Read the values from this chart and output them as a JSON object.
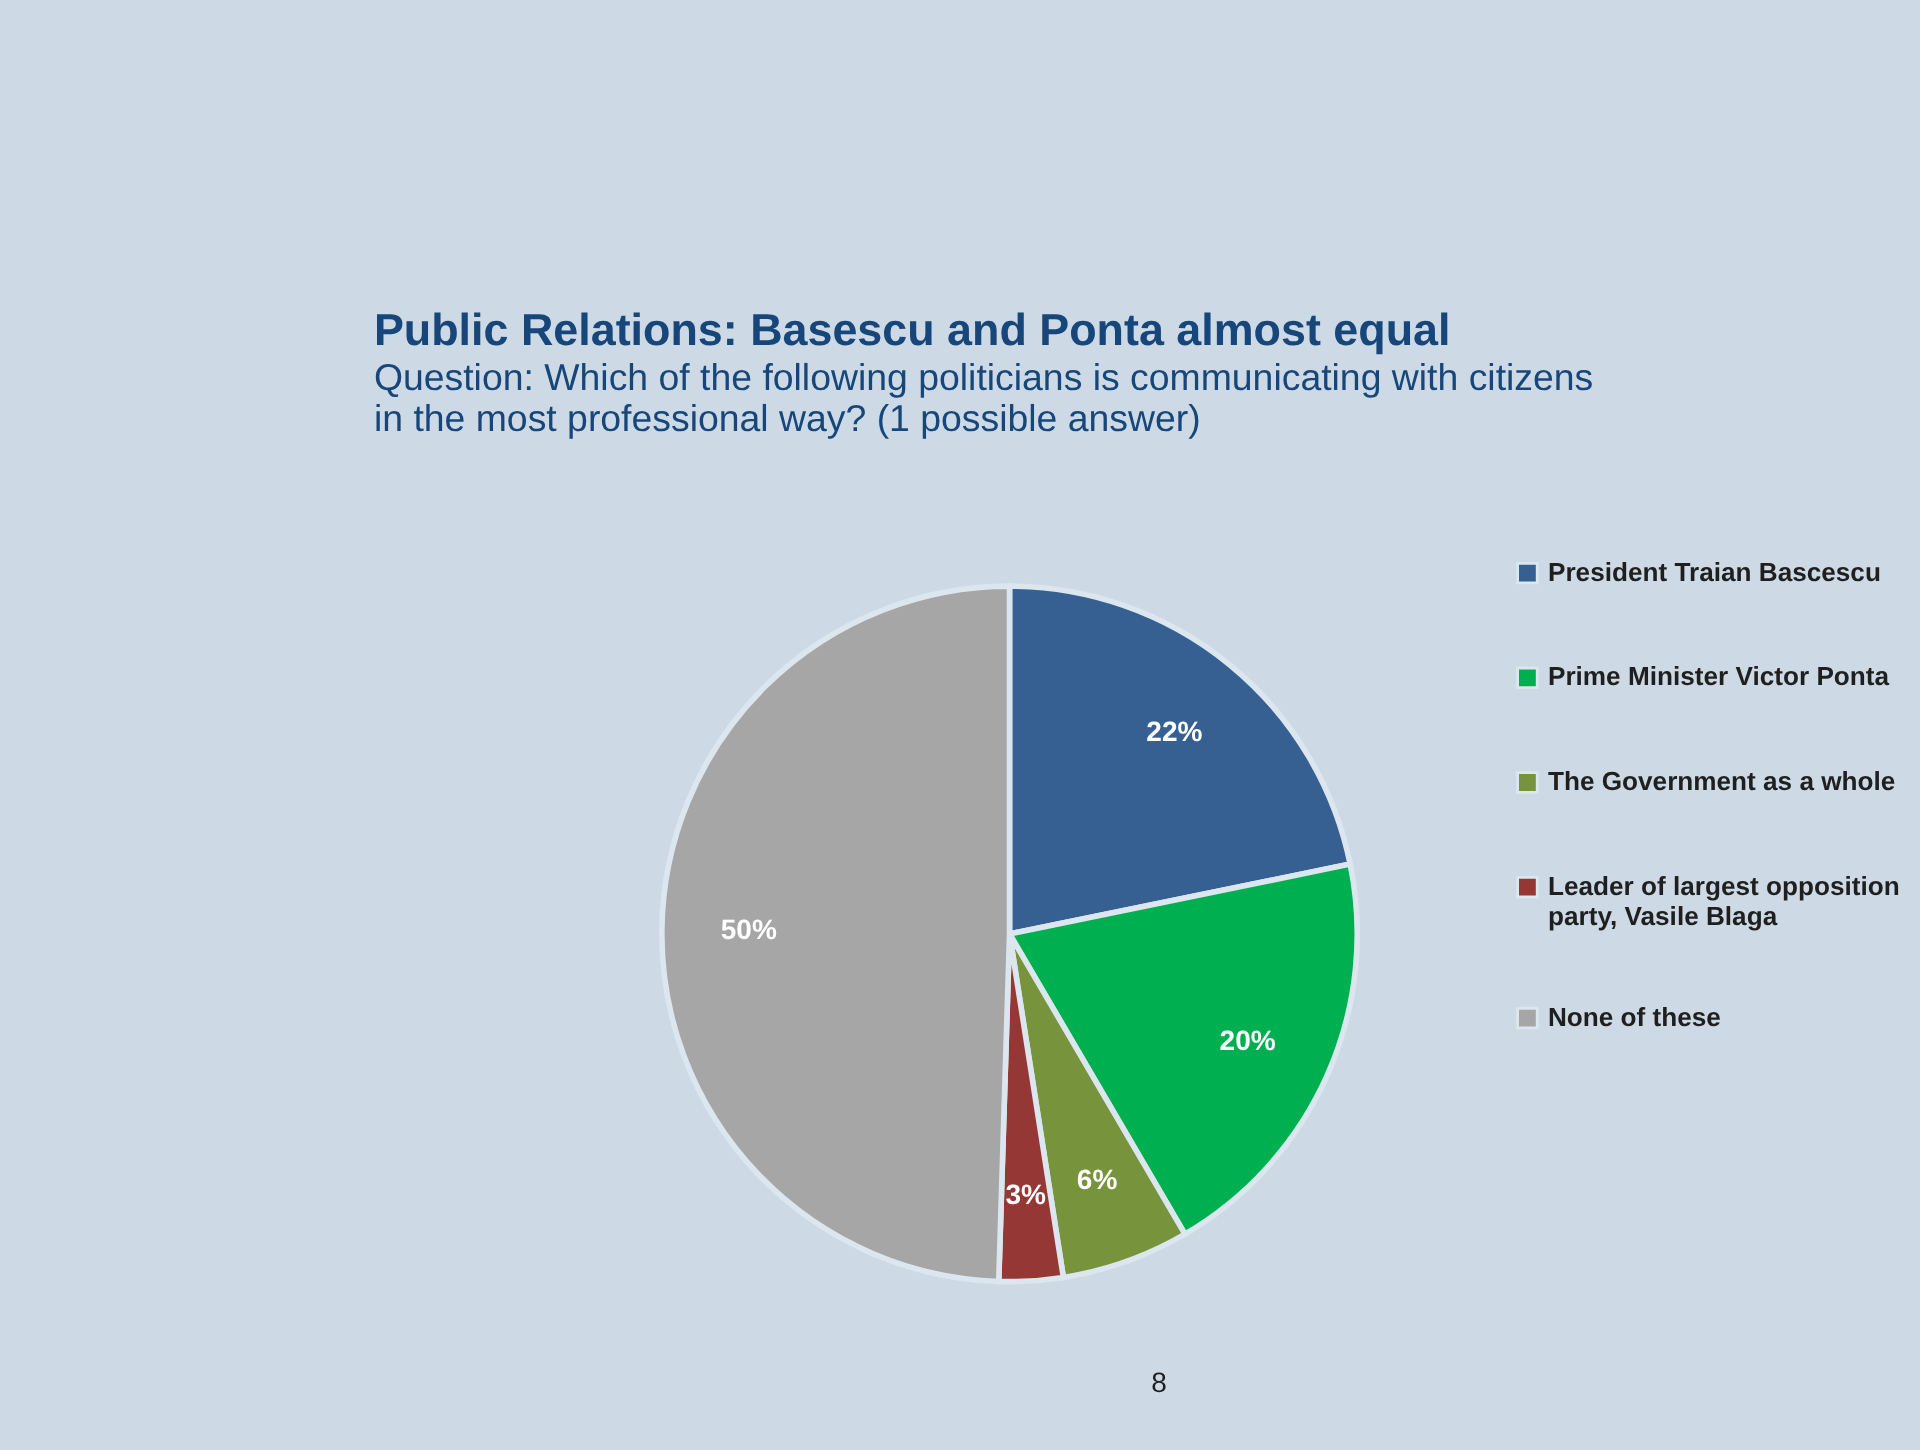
{
  "chart_data": {
    "type": "pie",
    "title": "Public Relations: Basescu and Ponta almost equal",
    "subtitle": "Question: Which of the following politicians is communicating with citizens in the most professional way? (1 possible answer)",
    "categories": [
      "President Traian Bascescu",
      "Prime Minister Victor Ponta",
      "The Government as a whole",
      "Leader of largest opposition party, Vasile Blaga",
      "None of these"
    ],
    "values": [
      22,
      20,
      6,
      3,
      50
    ],
    "value_labels": [
      "22%",
      "20%",
      "6%",
      "3%",
      "50%"
    ],
    "colors": [
      "#376092",
      "#00b050",
      "#77933c",
      "#953735",
      "#a6a6a6"
    ],
    "legend": "right",
    "annotations": [
      "8"
    ]
  }
}
